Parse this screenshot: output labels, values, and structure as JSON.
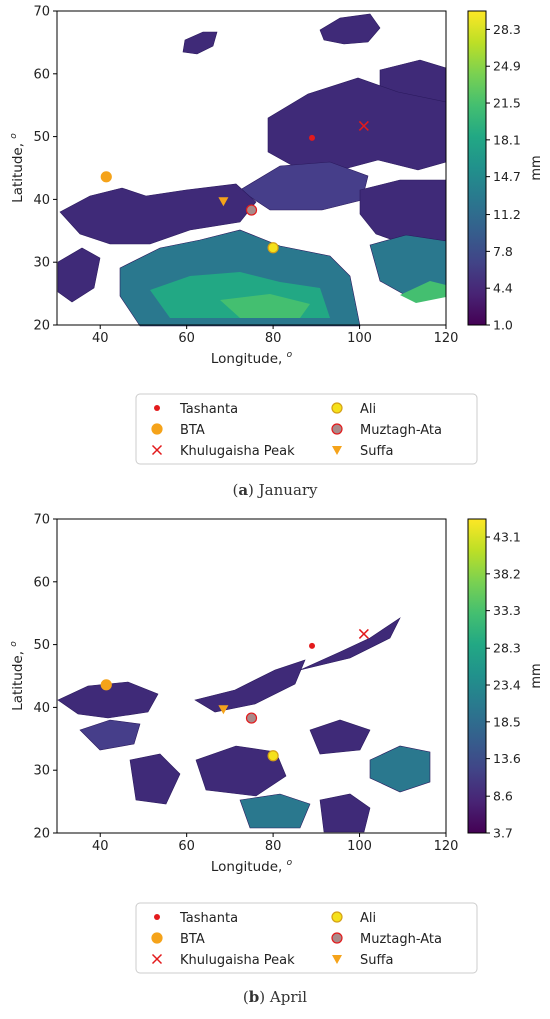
{
  "chart_data": [
    {
      "type": "heatmap",
      "caption_letter": "a",
      "caption_text": "January",
      "xlabel": "Longitude, ",
      "ylabel": "Latitude, ",
      "unit_superscript": "o",
      "xlim": [
        30,
        120
      ],
      "ylim": [
        20,
        70
      ],
      "xticks": [
        "40",
        "60",
        "80",
        "100",
        "120"
      ],
      "yticks": [
        "20",
        "30",
        "40",
        "50",
        "60",
        "70"
      ],
      "colorbar": {
        "label": "mm",
        "ticks": [
          "1.0",
          "4.4",
          "7.8",
          "11.2",
          "14.7",
          "18.1",
          "21.5",
          "24.9",
          "28.3"
        ],
        "min": 1.0,
        "max": 30.0
      },
      "stations": [
        {
          "name": "Tashanta",
          "lon": 89.0,
          "lat": 49.8,
          "marker": "dot",
          "color": "#e31a1c"
        },
        {
          "name": "BTA",
          "lon": 41.4,
          "lat": 43.6,
          "marker": "circle",
          "color": "#f5a31a"
        },
        {
          "name": "Khulugaisha Peak",
          "lon": 101.0,
          "lat": 51.7,
          "marker": "x",
          "color": "#e31a1c"
        },
        {
          "name": "Ali",
          "lon": 80.0,
          "lat": 32.3,
          "marker": "circle",
          "color": "#f5e11a"
        },
        {
          "name": "Muztagh-Ata",
          "lon": 75.0,
          "lat": 38.3,
          "marker": "circle",
          "color": "#a98a8a"
        },
        {
          "name": "Suffa",
          "lon": 68.5,
          "lat": 39.7,
          "marker": "triangle",
          "color": "#f5a31a"
        }
      ]
    },
    {
      "type": "heatmap",
      "caption_letter": "b",
      "caption_text": "April",
      "xlabel": "Longitude, ",
      "ylabel": "Latitude, ",
      "unit_superscript": "o",
      "xlim": [
        30,
        120
      ],
      "ylim": [
        20,
        70
      ],
      "xticks": [
        "40",
        "60",
        "80",
        "100",
        "120"
      ],
      "yticks": [
        "20",
        "30",
        "40",
        "50",
        "60",
        "70"
      ],
      "colorbar": {
        "label": "mm",
        "ticks": [
          "3.7",
          "8.6",
          "13.6",
          "18.5",
          "23.4",
          "28.3",
          "33.3",
          "38.2",
          "43.1"
        ],
        "min": 3.7,
        "max": 45.5
      },
      "stations": [
        {
          "name": "Tashanta",
          "lon": 89.0,
          "lat": 49.8,
          "marker": "dot",
          "color": "#e31a1c"
        },
        {
          "name": "BTA",
          "lon": 41.4,
          "lat": 43.6,
          "marker": "circle",
          "color": "#f5a31a"
        },
        {
          "name": "Khulugaisha Peak",
          "lon": 101.0,
          "lat": 51.7,
          "marker": "x",
          "color": "#e31a1c"
        },
        {
          "name": "Ali",
          "lon": 80.0,
          "lat": 32.3,
          "marker": "circle",
          "color": "#f5e11a"
        },
        {
          "name": "Muztagh-Ata",
          "lon": 75.0,
          "lat": 38.3,
          "marker": "circle",
          "color": "#a98a8a"
        },
        {
          "name": "Suffa",
          "lon": 68.5,
          "lat": 39.7,
          "marker": "triangle",
          "color": "#f5a31a"
        }
      ]
    }
  ]
}
